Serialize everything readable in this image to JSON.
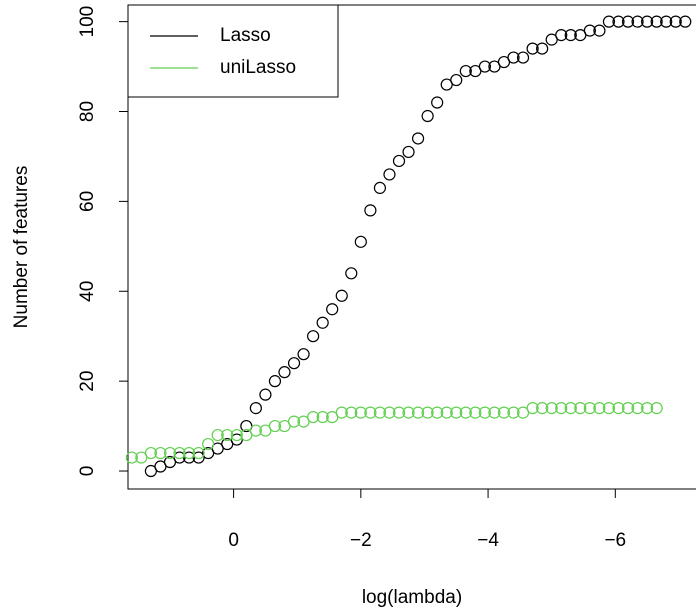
{
  "chart_data": {
    "type": "scatter",
    "xlabel": "log(lambda)",
    "ylabel": "Number of features",
    "xlim": [
      1.66,
      -7.3
    ],
    "ylim": [
      -4,
      103.7
    ],
    "xticks": [
      0,
      {
        "value": -2,
        "label": "−2"
      },
      {
        "value": -4,
        "label": "−4"
      },
      {
        "value": -6,
        "label": "−6"
      }
    ],
    "yticks": [
      0,
      20,
      40,
      60,
      80,
      100
    ],
    "legend": "top-left",
    "series": [
      {
        "name": "Lasso",
        "color": "#000000",
        "x": [
          1.3,
          1.15,
          1.0,
          0.85,
          0.7,
          0.55,
          0.4,
          0.25,
          0.1,
          -0.05,
          -0.2,
          -0.35,
          -0.5,
          -0.65,
          -0.8,
          -0.95,
          -1.1,
          -1.25,
          -1.4,
          -1.55,
          -1.7,
          -1.85,
          -2.0,
          -2.15,
          -2.3,
          -2.45,
          -2.6,
          -2.75,
          -2.9,
          -3.05,
          -3.2,
          -3.35,
          -3.5,
          -3.65,
          -3.8,
          -3.95,
          -4.1,
          -4.25,
          -4.4,
          -4.55,
          -4.7,
          -4.85,
          -5.0,
          -5.15,
          -5.3,
          -5.45,
          -5.6,
          -5.75,
          -5.9,
          -6.05,
          -6.2,
          -6.35,
          -6.5,
          -6.65,
          -6.8,
          -6.95,
          -7.1
        ],
        "values": [
          0,
          1,
          2,
          3,
          3,
          3,
          4,
          5,
          6,
          7,
          10,
          14,
          17,
          20,
          22,
          24,
          26,
          30,
          33,
          36,
          39,
          44,
          51,
          58,
          63,
          66,
          69,
          71,
          74,
          79,
          82,
          86,
          87,
          89,
          89,
          90,
          90,
          91,
          92,
          92,
          94,
          94,
          96,
          97,
          97,
          97,
          98,
          98,
          100,
          100,
          100,
          100,
          100,
          100,
          100,
          100,
          100
        ]
      },
      {
        "name": "uniLasso",
        "color": "#61d04f",
        "x": [
          1.6,
          1.45,
          1.3,
          1.15,
          1.0,
          0.85,
          0.7,
          0.55,
          0.4,
          0.25,
          0.1,
          -0.05,
          -0.2,
          -0.35,
          -0.5,
          -0.65,
          -0.8,
          -0.95,
          -1.1,
          -1.25,
          -1.4,
          -1.55,
          -1.7,
          -1.85,
          -2.0,
          -2.15,
          -2.3,
          -2.45,
          -2.6,
          -2.75,
          -2.9,
          -3.05,
          -3.2,
          -3.35,
          -3.5,
          -3.65,
          -3.8,
          -3.95,
          -4.1,
          -4.25,
          -4.4,
          -4.55,
          -4.7,
          -4.85,
          -5.0,
          -5.15,
          -5.3,
          -5.45,
          -5.6,
          -5.75,
          -5.9,
          -6.05,
          -6.2,
          -6.35,
          -6.5,
          -6.65
        ],
        "values": [
          3,
          3,
          4,
          4,
          4,
          4,
          4,
          4,
          6,
          8,
          8,
          8,
          8,
          9,
          9,
          10,
          10,
          11,
          11,
          12,
          12,
          12,
          13,
          13,
          13,
          13,
          13,
          13,
          13,
          13,
          13,
          13,
          13,
          13,
          13,
          13,
          13,
          13,
          13,
          13,
          13,
          13,
          14,
          14,
          14,
          14,
          14,
          14,
          14,
          14,
          14,
          14,
          14,
          14,
          14,
          14
        ]
      }
    ]
  }
}
